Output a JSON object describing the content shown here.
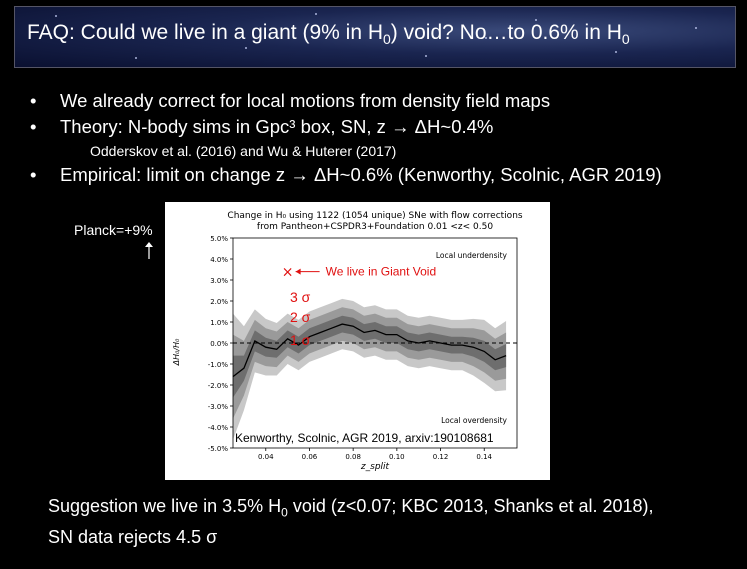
{
  "title": {
    "prefix": "FAQ: Could we live in a giant (9% in H",
    "sub1": "0",
    "middle": ") void?  No…to 0.6% in H",
    "sub2": "0"
  },
  "bullets": [
    {
      "dot": "•",
      "text": "We already correct for local motions from density field maps"
    },
    {
      "dot": "•",
      "text": "Theory: N-body sims in Gpc³ box, SN, z → ΔH~0.4%"
    },
    {
      "dot": "•",
      "text": "Empirical: limit on change z → ΔH~0.6% (Kenworthy, Scolnic, AGR 2019)"
    }
  ],
  "subref": "Odderskov et al. (2016)  and Wu & Huterer (2017)",
  "planck_label": "Planck=+9%",
  "planck_arrow": "↑",
  "suggestion": {
    "line1_a": "Suggestion we live in 3.5% H",
    "line1_sub": "0",
    "line1_b": " void (z<0.07; KBC 2013, Shanks et al. 2018),",
    "line2": "SN data rejects 4.5 σ"
  },
  "chart_data": {
    "type": "line",
    "title": "Change in H₀ using 1122 (1054 unique) SNe with flow corrections",
    "subtitle": "from Pantheon+CSPDR3+Foundation 0.01 <z< 0.50",
    "xlabel": "z_split",
    "ylabel": "ΔH₀/H₀",
    "xlim": [
      0.025,
      0.155
    ],
    "ylim": [
      -5.0,
      5.0
    ],
    "xticks": [
      "0.04",
      "0.06",
      "0.08",
      "0.10",
      "0.12",
      "0.14"
    ],
    "yticks": [
      "5.0%",
      "4.0%",
      "3.0%",
      "2.0%",
      "1.0%",
      "0.0%",
      "-1.0%",
      "-2.0%",
      "-3.0%",
      "-4.0%",
      "-5.0%"
    ],
    "series": [
      {
        "x": [
          0.025,
          0.03,
          0.035,
          0.04,
          0.045,
          0.05,
          0.055,
          0.06,
          0.065,
          0.07,
          0.075,
          0.08,
          0.085,
          0.09,
          0.095,
          0.1,
          0.105,
          0.11,
          0.115,
          0.12,
          0.125,
          0.13,
          0.135,
          0.14,
          0.145,
          0.15
        ],
        "y": [
          -1.6,
          -1.2,
          0.1,
          -0.2,
          -0.3,
          0.2,
          -0.1,
          0.3,
          0.5,
          0.7,
          0.9,
          0.8,
          0.5,
          0.6,
          0.4,
          0.4,
          0.1,
          0.0,
          0.1,
          0.0,
          -0.1,
          -0.1,
          -0.2,
          -0.4,
          -0.8,
          -0.6
        ]
      }
    ],
    "band_half_widths_pct": {
      "1sigma": [
        1.0,
        0.6,
        0.5,
        0.45,
        0.4,
        0.4,
        0.4,
        0.4,
        0.4,
        0.4,
        0.4,
        0.4,
        0.4,
        0.4,
        0.4,
        0.4,
        0.4,
        0.4,
        0.4,
        0.4,
        0.4,
        0.4,
        0.45,
        0.5,
        0.5,
        0.55
      ],
      "2sigma": [
        2.0,
        1.3,
        1.0,
        0.9,
        0.85,
        0.8,
        0.8,
        0.8,
        0.8,
        0.8,
        0.8,
        0.8,
        0.8,
        0.8,
        0.8,
        0.8,
        0.8,
        0.8,
        0.8,
        0.8,
        0.8,
        0.8,
        0.9,
        1.0,
        1.0,
        1.1
      ],
      "3sigma": [
        3.0,
        2.0,
        1.5,
        1.35,
        1.25,
        1.2,
        1.2,
        1.2,
        1.2,
        1.2,
        1.2,
        1.2,
        1.2,
        1.2,
        1.2,
        1.2,
        1.2,
        1.2,
        1.2,
        1.2,
        1.2,
        1.2,
        1.35,
        1.5,
        1.5,
        1.65
      ]
    },
    "annotations": {
      "local_underdensity": "Local underdensity",
      "local_overdensity": "Local overdensity",
      "void_label": "We live in Giant Void",
      "sigma3": "3 σ",
      "sigma2": "2 σ",
      "sigma1": "1 σ",
      "credit": "Kenworthy, Scolnic, AGR 2019, arxiv:190108681"
    },
    "void_marker": {
      "x": 0.05,
      "y": 3.4
    },
    "colors": {
      "band1": "#6e6e6e",
      "band2": "#9a9a9a",
      "band3": "#c8c8c8",
      "line": "#000000",
      "red": "#e01010"
    }
  }
}
